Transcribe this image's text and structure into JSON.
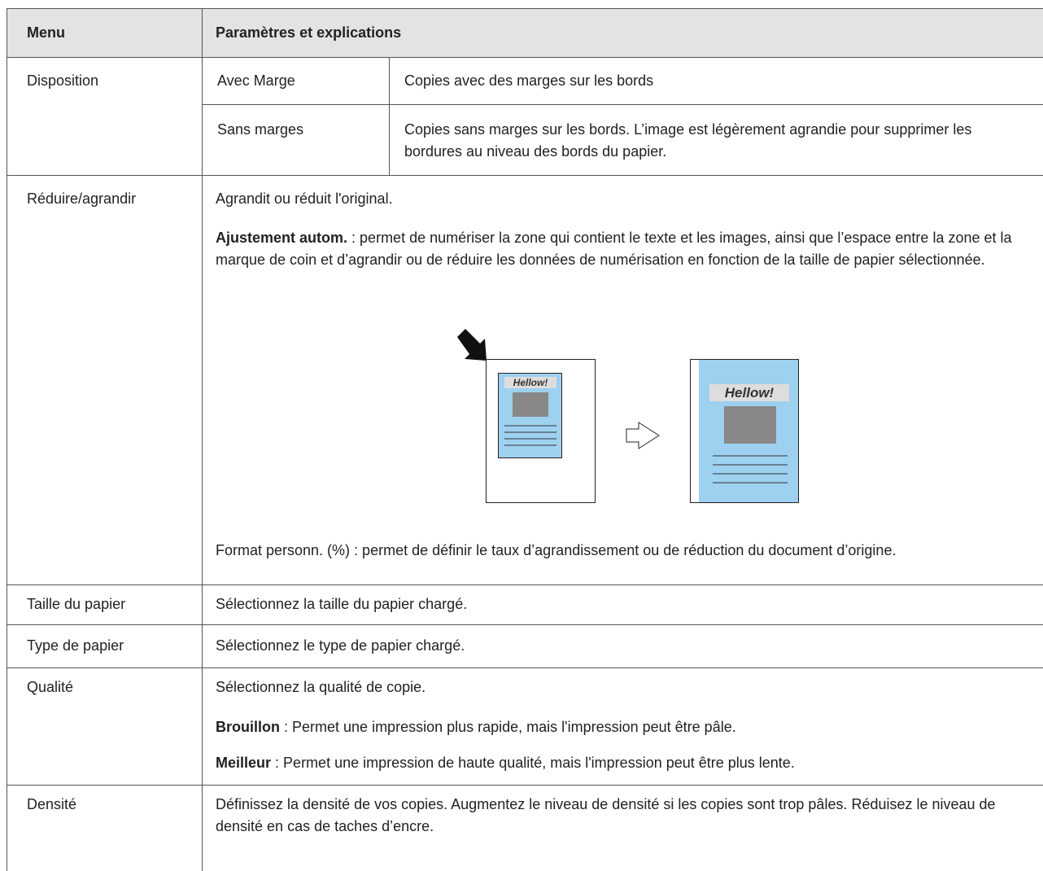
{
  "table": {
    "header": {
      "menu": "Menu",
      "params": "Paramètres et explications"
    },
    "rows": [
      {
        "menu": "Disposition",
        "options": [
          {
            "name": "Avec Marge",
            "desc": "Copies avec des marges sur les bords"
          },
          {
            "name": "Sans marges",
            "desc": "Copies sans marges sur les bords. L’image est légèrement agrandie pour supprimer les bordures au niveau des bords du papier."
          }
        ]
      },
      {
        "menu": "Réduire/agrandir",
        "intro": "Agrandit ou réduit l'original.",
        "items": [
          {
            "term": "Ajustement autom.",
            "text": ": permet de numériser la zone qui contient le texte et les images, ainsi que l’espace entre la zone et la marque de coin et d’agrandir ou de réduire les données de numérisation en fonction de la taille de papier sélectionnée."
          }
        ],
        "illustration": {
          "before_label": "Hellow!",
          "after_label": "Hellow!"
        },
        "note": "Format personn. (%) : permet de définir le taux d’agrandissement ou de réduction du document d’origine."
      },
      {
        "menu": "Taille du papier",
        "intro": "Sélectionnez la taille du papier chargé."
      },
      {
        "menu": "Type de papier",
        "intro": "Sélectionnez le type de papier chargé."
      },
      {
        "menu": "Qualité",
        "intro": "Sélectionnez la qualité de copie.",
        "items": [
          {
            "term": "Brouillon",
            "text": ": Permet une impression plus rapide, mais l'impression peut être pâle."
          },
          {
            "term": "Meilleur",
            "text": ": Permet une impression de haute qualité, mais l'impression peut être plus lente."
          }
        ]
      },
      {
        "menu": "Densité",
        "intro": "Définissez la densité de vos copies. Augmentez le niveau de densité si les copies sont trop pâles. Réduisez le niveau de densité en cas de taches d’encre."
      }
    ]
  }
}
